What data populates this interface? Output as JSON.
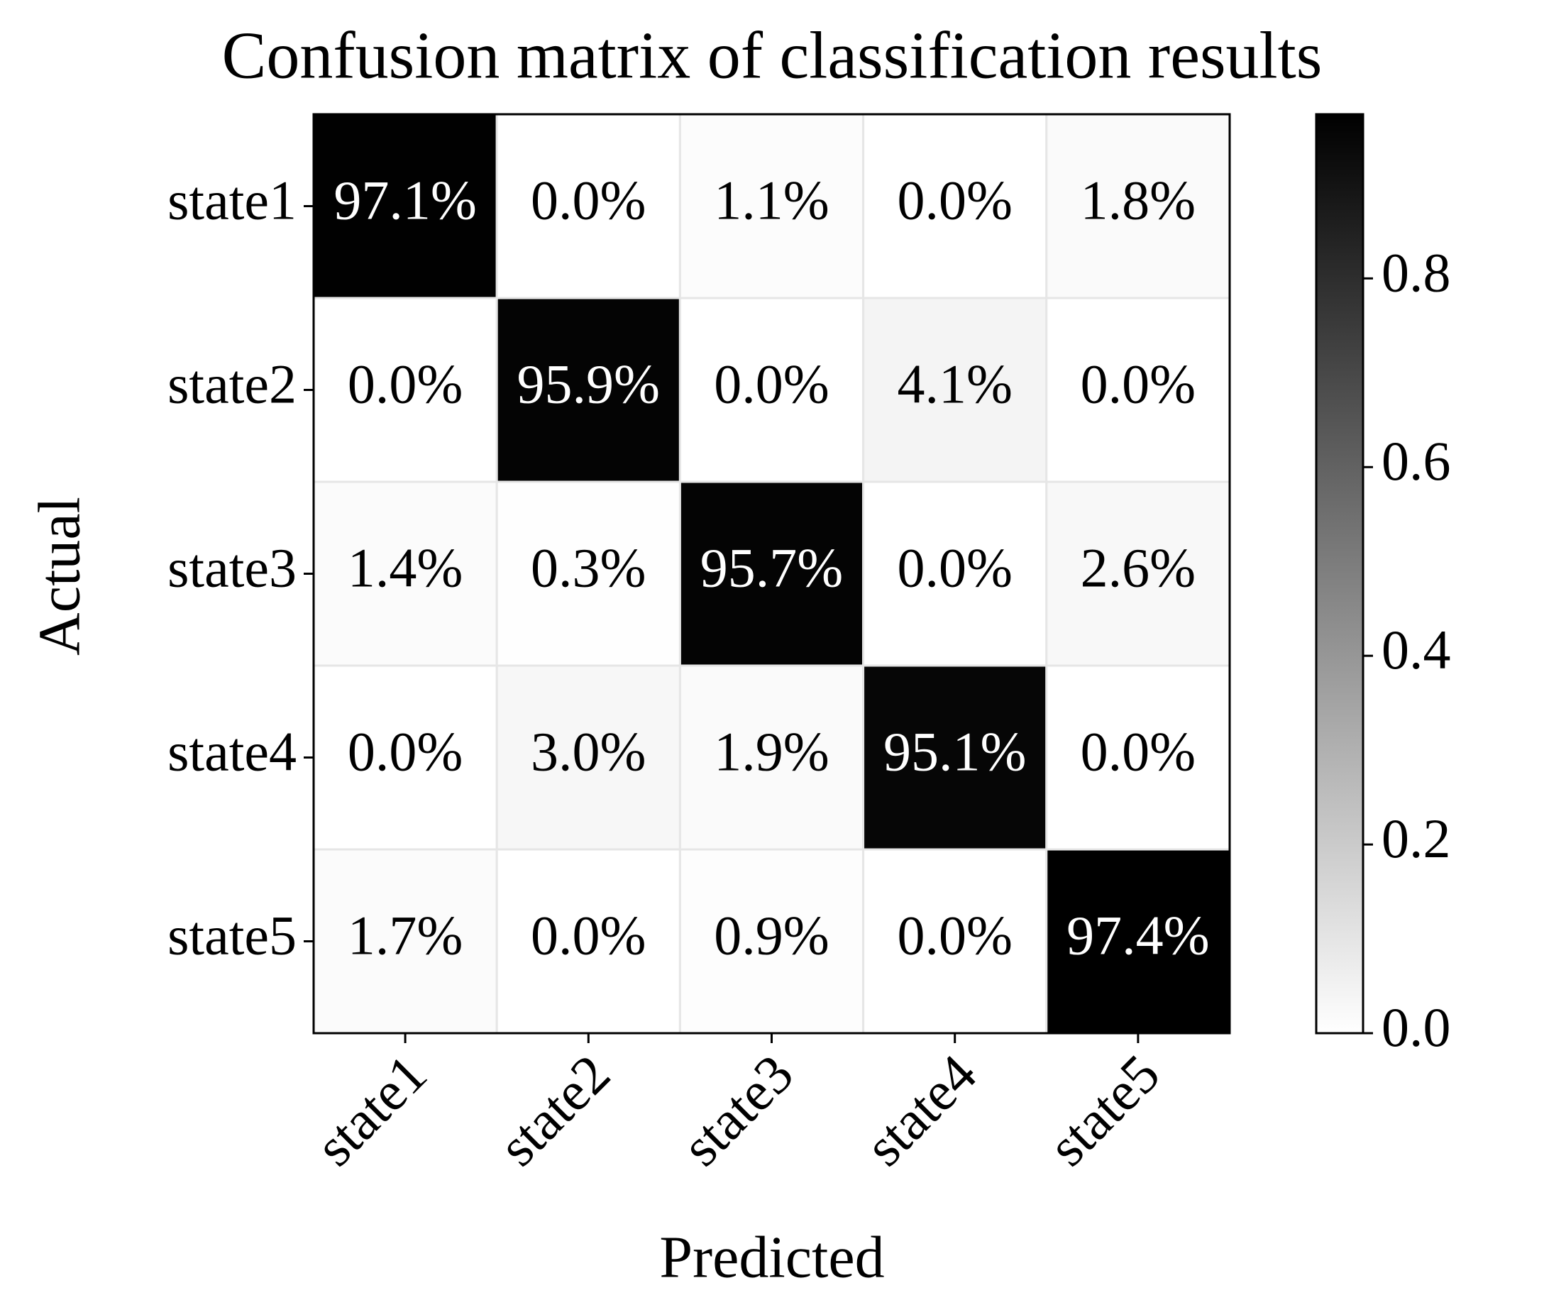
{
  "chart_data": {
    "type": "heatmap",
    "title": "Confusion matrix of classification results",
    "xlabel": "Predicted",
    "ylabel": "Actual",
    "x_categories": [
      "state1",
      "state2",
      "state3",
      "state4",
      "state5"
    ],
    "y_categories": [
      "state1",
      "state2",
      "state3",
      "state4",
      "state5"
    ],
    "values": [
      [
        0.971,
        0.0,
        0.011,
        0.0,
        0.018
      ],
      [
        0.0,
        0.959,
        0.0,
        0.041,
        0.0
      ],
      [
        0.014,
        0.003,
        0.957,
        0.0,
        0.026
      ],
      [
        0.0,
        0.03,
        0.019,
        0.951,
        0.0
      ],
      [
        0.017,
        0.0,
        0.009,
        0.0,
        0.974
      ]
    ],
    "value_labels": [
      [
        "97.1%",
        "0.0%",
        "1.1%",
        "0.0%",
        "1.8%"
      ],
      [
        "0.0%",
        "95.9%",
        "0.0%",
        "4.1%",
        "0.0%"
      ],
      [
        "1.4%",
        "0.3%",
        "95.7%",
        "0.0%",
        "2.6%"
      ],
      [
        "0.0%",
        "3.0%",
        "1.9%",
        "95.1%",
        "0.0%"
      ],
      [
        "1.7%",
        "0.0%",
        "0.9%",
        "0.0%",
        "97.4%"
      ]
    ],
    "colormap": [
      "#ffffff",
      "#000000"
    ],
    "clim": [
      0,
      0.974
    ],
    "cticks": [
      {
        "value": 0,
        "label": "0.0"
      },
      0.2,
      0.4,
      0.6,
      0.8
    ]
  }
}
